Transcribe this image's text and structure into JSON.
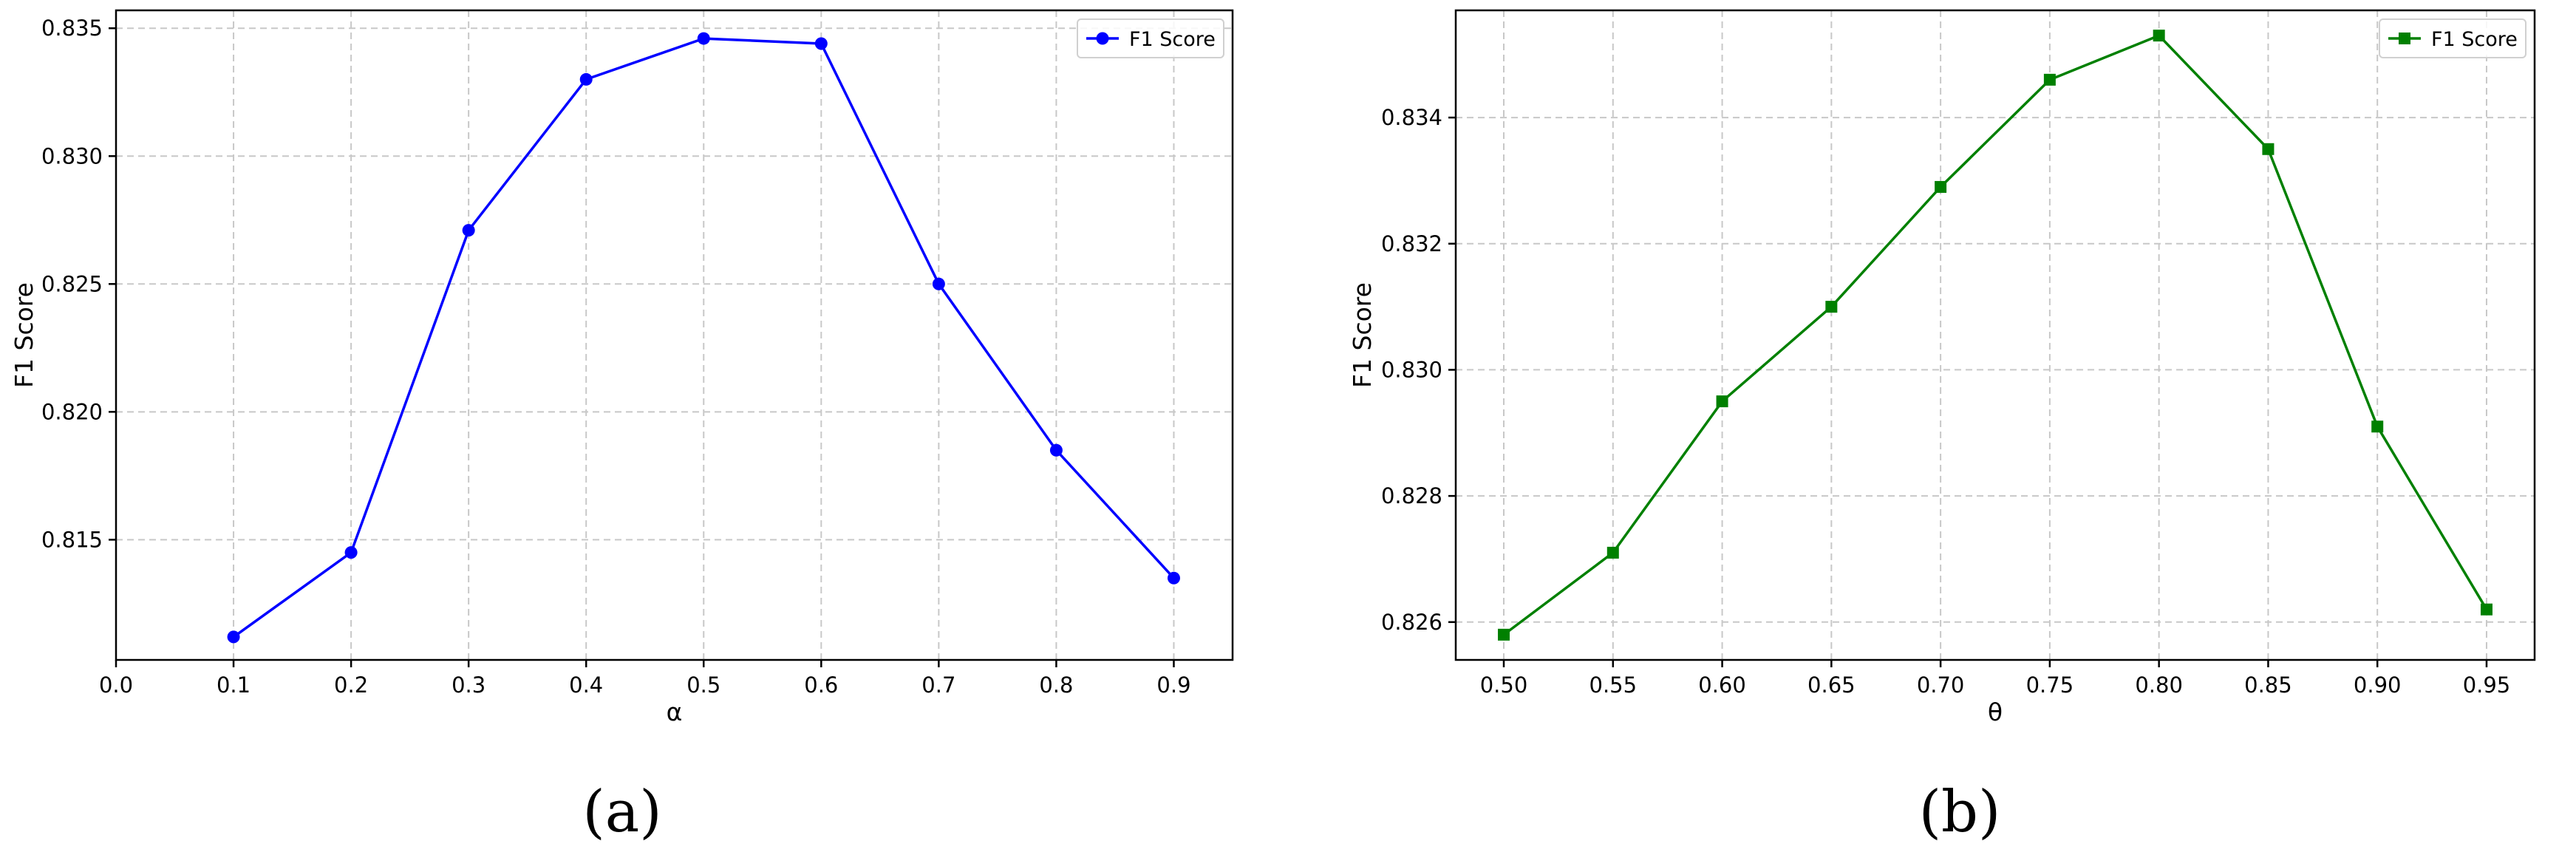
{
  "chart_data": [
    {
      "type": "line",
      "panel_label": "(a)",
      "xlabel": "α",
      "ylabel": "F1 Score",
      "xlim": [
        0.0,
        0.95
      ],
      "ylim": [
        0.8103,
        0.8357
      ],
      "xticks": [
        0.0,
        0.1,
        0.2,
        0.3,
        0.4,
        0.5,
        0.6,
        0.7,
        0.8,
        0.9
      ],
      "xtick_labels": [
        "0.0",
        "0.1",
        "0.2",
        "0.3",
        "0.4",
        "0.5",
        "0.6",
        "0.7",
        "0.8",
        "0.9"
      ],
      "yticks": [
        0.815,
        0.82,
        0.825,
        0.83,
        0.835
      ],
      "ytick_labels": [
        "0.815",
        "0.820",
        "0.825",
        "0.830",
        "0.835"
      ],
      "grid": true,
      "legend_position": "top-right",
      "series": [
        {
          "name": "F1 Score",
          "color": "#0000ff",
          "marker": "circle",
          "x": [
            0.1,
            0.2,
            0.3,
            0.4,
            0.5,
            0.6,
            0.7,
            0.8,
            0.9
          ],
          "y": [
            0.8112,
            0.8145,
            0.8271,
            0.833,
            0.8346,
            0.8344,
            0.825,
            0.8185,
            0.8135
          ]
        }
      ]
    },
    {
      "type": "line",
      "panel_label": "(b)",
      "xlabel": "θ",
      "ylabel": "F1 Score",
      "xlim": [
        0.478,
        0.972
      ],
      "ylim": [
        0.8254,
        0.8357
      ],
      "xticks": [
        0.5,
        0.55,
        0.6,
        0.65,
        0.7,
        0.75,
        0.8,
        0.85,
        0.9,
        0.95
      ],
      "xtick_labels": [
        "0.50",
        "0.55",
        "0.60",
        "0.65",
        "0.70",
        "0.75",
        "0.80",
        "0.85",
        "0.90",
        "0.95"
      ],
      "yticks": [
        0.826,
        0.828,
        0.83,
        0.832,
        0.834
      ],
      "ytick_labels": [
        "0.826",
        "0.828",
        "0.830",
        "0.832",
        "0.834"
      ],
      "grid": true,
      "legend_position": "top-right",
      "series": [
        {
          "name": "F1 Score",
          "color": "#008000",
          "marker": "square",
          "x": [
            0.5,
            0.55,
            0.6,
            0.65,
            0.7,
            0.75,
            0.8,
            0.85,
            0.9,
            0.95
          ],
          "y": [
            0.8258,
            0.8271,
            0.8295,
            0.831,
            0.8329,
            0.8346,
            0.8353,
            0.8335,
            0.8291,
            0.8262
          ]
        }
      ]
    }
  ]
}
